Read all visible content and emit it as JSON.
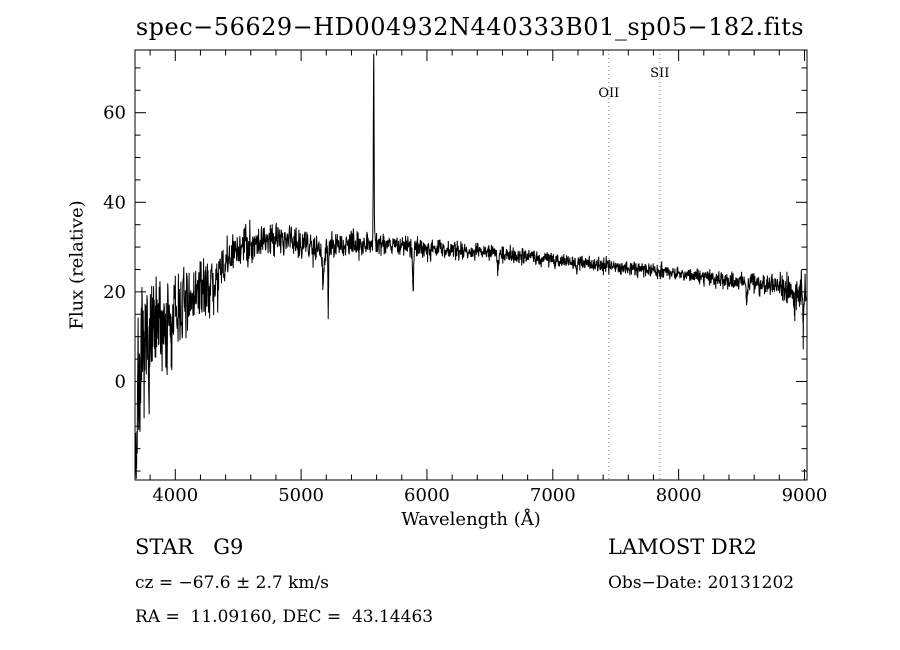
{
  "footer": {
    "class_label": "STAR   G9",
    "cz": "cz = −67.6 ± 2.7 km/s",
    "radec": "RA =  11.09160, DEC =  43.14463",
    "survey": "LAMOST DR2",
    "obs_date": "Obs−Date: 20131202"
  },
  "chart_data": {
    "type": "line",
    "title": "spec−56629−HD004932N440333B01_sp05−182.fits",
    "xlabel": "Wavelength (Å)",
    "ylabel": "Flux (relative)",
    "xlim": [
      3680,
      9020
    ],
    "ylim": [
      -22,
      74
    ],
    "x_ticks": [
      4000,
      5000,
      6000,
      7000,
      8000,
      9000
    ],
    "y_ticks": [
      0,
      20,
      40,
      60
    ],
    "x_minor_step": 200,
    "y_minor_step": 5,
    "grid": false,
    "line_color": "#000000",
    "marker_color": "#8a8a8a",
    "spectral_lines": [
      {
        "label": "OII",
        "wavelength": 7445,
        "label_offset": 47
      },
      {
        "label": "SII",
        "wavelength": 7850,
        "label_offset": 27
      }
    ],
    "continuum": [
      [
        3685,
        -5
      ],
      [
        3720,
        2
      ],
      [
        3760,
        6
      ],
      [
        3800,
        9
      ],
      [
        3850,
        11
      ],
      [
        3900,
        13
      ],
      [
        3950,
        14
      ],
      [
        4000,
        15
      ],
      [
        4050,
        16.5
      ],
      [
        4100,
        18
      ],
      [
        4150,
        19
      ],
      [
        4200,
        20
      ],
      [
        4250,
        21
      ],
      [
        4300,
        22.5
      ],
      [
        4350,
        24
      ],
      [
        4400,
        26
      ],
      [
        4450,
        28
      ],
      [
        4500,
        29.5
      ],
      [
        4550,
        30.5
      ],
      [
        4600,
        31
      ],
      [
        4700,
        31.5
      ],
      [
        4800,
        32.5
      ],
      [
        4900,
        32
      ],
      [
        5000,
        31
      ],
      [
        5100,
        30
      ],
      [
        5200,
        29.8
      ],
      [
        5300,
        30.2
      ],
      [
        5400,
        30.5
      ],
      [
        5500,
        31
      ],
      [
        5600,
        31
      ],
      [
        5700,
        30.8
      ],
      [
        5800,
        30.3
      ],
      [
        5900,
        30
      ],
      [
        6000,
        29.8
      ],
      [
        6100,
        29.6
      ],
      [
        6200,
        29.4
      ],
      [
        6300,
        29.2
      ],
      [
        6400,
        29
      ],
      [
        6500,
        28.8
      ],
      [
        6600,
        28.4
      ],
      [
        6700,
        28.2
      ],
      [
        6800,
        28
      ],
      [
        6900,
        27.6
      ],
      [
        7000,
        27.2
      ],
      [
        7100,
        26.9
      ],
      [
        7200,
        26.6
      ],
      [
        7300,
        26.3
      ],
      [
        7400,
        26
      ],
      [
        7500,
        25.7
      ],
      [
        7600,
        25.4
      ],
      [
        7700,
        25.1
      ],
      [
        7800,
        24.8
      ],
      [
        7900,
        24.4
      ],
      [
        8000,
        24
      ],
      [
        8100,
        23.6
      ],
      [
        8200,
        23.3
      ],
      [
        8300,
        23
      ],
      [
        8400,
        22.7
      ],
      [
        8500,
        22.3
      ],
      [
        8600,
        22
      ],
      [
        8700,
        21.6
      ],
      [
        8800,
        21.2
      ],
      [
        8900,
        20.5
      ],
      [
        9000,
        19.5
      ],
      [
        9015,
        18.5
      ]
    ],
    "features": [
      {
        "x": 3690,
        "amp": -12,
        "sigma": 6
      },
      {
        "x": 3933,
        "amp": -8,
        "sigma": 4
      },
      {
        "x": 3968,
        "amp": -8,
        "sigma": 4
      },
      {
        "x": 4101,
        "amp": -6,
        "sigma": 4
      },
      {
        "x": 4305,
        "amp": -4,
        "sigma": 6
      },
      {
        "x": 4340,
        "amp": -3,
        "sigma": 4
      },
      {
        "x": 4861,
        "amp": -4,
        "sigma": 4
      },
      {
        "x": 5175,
        "amp": -6,
        "sigma": 8
      },
      {
        "x": 5215,
        "amp": -15,
        "sigma": 2.5
      },
      {
        "x": 5577,
        "amp": 42,
        "sigma": 3
      },
      {
        "x": 5890,
        "amp": -9,
        "sigma": 5
      },
      {
        "x": 6563,
        "amp": -3.5,
        "sigma": 4
      },
      {
        "x": 7190,
        "amp": -2,
        "sigma": 5
      },
      {
        "x": 8542,
        "amp": -3,
        "sigma": 5
      },
      {
        "x": 8920,
        "amp": -7,
        "sigma": 3
      },
      {
        "x": 8990,
        "amp": -8,
        "sigma": 3
      }
    ],
    "noise_sigma": [
      [
        3690,
        8
      ],
      [
        3800,
        6.5
      ],
      [
        3900,
        5.5
      ],
      [
        4000,
        4.5
      ],
      [
        4200,
        3.2
      ],
      [
        4400,
        2.6
      ],
      [
        4600,
        2.2
      ],
      [
        4800,
        2.0
      ],
      [
        5000,
        1.8
      ],
      [
        5200,
        1.6
      ],
      [
        5400,
        1.4
      ],
      [
        5600,
        1.3
      ],
      [
        5800,
        1.2
      ],
      [
        6000,
        1.1
      ],
      [
        6300,
        1.0
      ],
      [
        6600,
        0.9
      ],
      [
        7000,
        0.85
      ],
      [
        7400,
        0.8
      ],
      [
        7800,
        0.85
      ],
      [
        8200,
        0.95
      ],
      [
        8600,
        1.2
      ],
      [
        8800,
        1.5
      ],
      [
        9000,
        2.2
      ]
    ]
  }
}
